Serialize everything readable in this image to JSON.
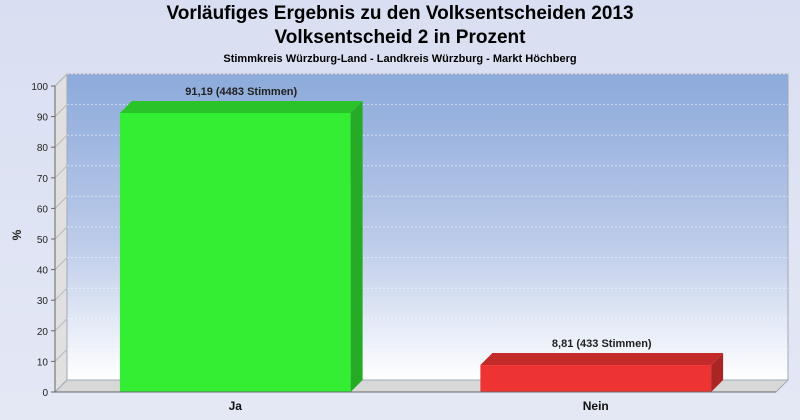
{
  "chart_data": {
    "type": "bar",
    "title": "Vorläufiges Ergebnis zu den Volksentscheiden 2013",
    "subtitle": "Volksentscheid 2 in Prozent",
    "subsubtitle": "Stimmkreis Würzburg-Land - Landkreis Würzburg - Markt Höchberg",
    "ylabel": "%",
    "ylim": [
      0,
      100
    ],
    "yticks": [
      0,
      10,
      20,
      30,
      40,
      50,
      60,
      70,
      80,
      90,
      100
    ],
    "categories": [
      "Ja",
      "Nein"
    ],
    "values": [
      91.19,
      8.81
    ],
    "data_labels": [
      "91,19 (4483 Stimmen)",
      "8,81 (433 Stimmen)"
    ],
    "colors": [
      "#33ee33",
      "#ee3333"
    ],
    "grid": true
  }
}
